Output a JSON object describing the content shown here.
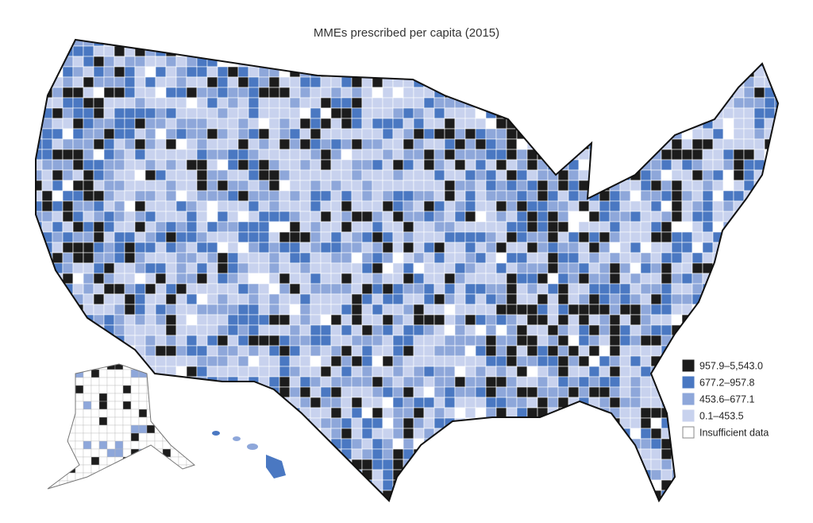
{
  "title": "MMEs prescribed per capita (2015)",
  "legend": {
    "items": [
      {
        "label": "957.9–5,543.0",
        "color": "#1c1c1c"
      },
      {
        "label": "677.2–957.8",
        "color": "#4a78c2"
      },
      {
        "label": "453.6–677.1",
        "color": "#8ea7da"
      },
      {
        "label": "0.1–453.5",
        "color": "#c8d2ee"
      },
      {
        "label": "Insufficient data",
        "color": "#ffffff"
      }
    ]
  }
}
